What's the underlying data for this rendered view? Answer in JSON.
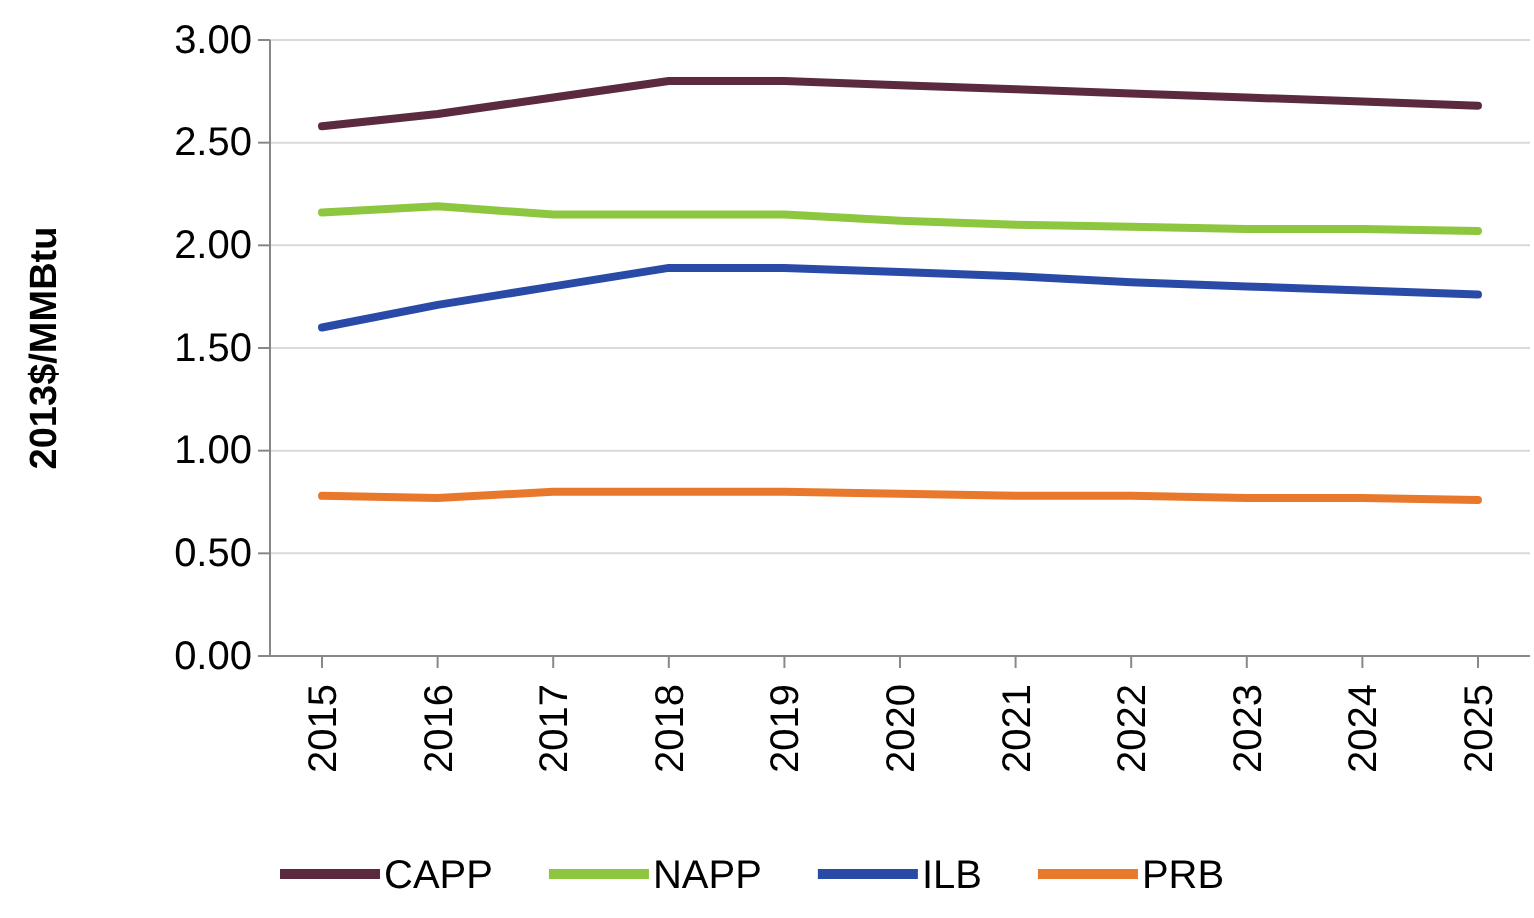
{
  "chart_data": {
    "type": "line",
    "ylabel": "2013$/MMBtu",
    "categories": [
      "2015",
      "2016",
      "2017",
      "2018",
      "2019",
      "2020",
      "2021",
      "2022",
      "2023",
      "2024",
      "2025"
    ],
    "series": [
      {
        "name": "CAPP",
        "color": "#5b2a3e",
        "values": [
          2.58,
          2.64,
          2.72,
          2.8,
          2.8,
          2.78,
          2.76,
          2.74,
          2.72,
          2.7,
          2.68
        ]
      },
      {
        "name": "NAPP",
        "color": "#8dc63f",
        "values": [
          2.16,
          2.19,
          2.15,
          2.15,
          2.15,
          2.12,
          2.1,
          2.09,
          2.08,
          2.08,
          2.07
        ]
      },
      {
        "name": "ILB",
        "color": "#2a4aa8",
        "values": [
          1.6,
          1.71,
          1.8,
          1.89,
          1.89,
          1.87,
          1.85,
          1.82,
          1.8,
          1.78,
          1.76
        ]
      },
      {
        "name": "PRB",
        "color": "#e8782c",
        "values": [
          0.78,
          0.77,
          0.8,
          0.8,
          0.8,
          0.79,
          0.78,
          0.78,
          0.77,
          0.77,
          0.76
        ]
      }
    ],
    "ylim": [
      0,
      3
    ],
    "yticks": [
      {
        "value": 0,
        "label": "0.00"
      },
      {
        "value": 0.5,
        "label": "0.50"
      },
      {
        "value": 1,
        "label": "1.00"
      },
      {
        "value": 1.5,
        "label": "1.50"
      },
      {
        "value": 2,
        "label": "2.00"
      },
      {
        "value": 2.5,
        "label": "2.50"
      },
      {
        "value": 3,
        "label": "3.00"
      }
    ],
    "grid": "y",
    "legend": "bottom",
    "marker": "none",
    "line_style": "solid"
  }
}
